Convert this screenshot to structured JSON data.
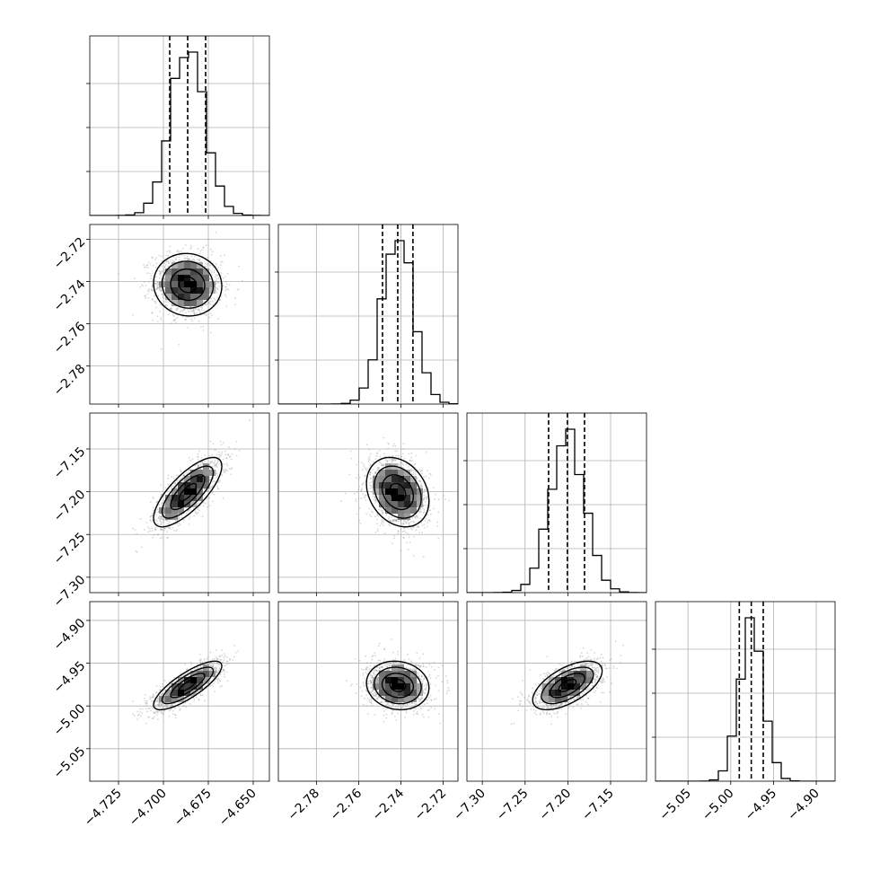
{
  "chart_data": {
    "type": "corner",
    "parameters": [
      {
        "ticks": [
          -4.725,
          -4.7,
          -4.675,
          -4.65
        ],
        "tick_labels": [
          "−4.725",
          "−4.700",
          "−4.675",
          "−4.650"
        ],
        "range": [
          -4.741,
          -4.641
        ],
        "mean": -4.6865,
        "sd": 0.0095,
        "quantiles": [
          -4.6965,
          -4.6865,
          -4.6765
        ]
      },
      {
        "ticks": [
          -2.78,
          -2.76,
          -2.74,
          -2.72
        ],
        "tick_labels": [
          "−2.78",
          "−2.76",
          "−2.74",
          "−2.72"
        ],
        "range": [
          -2.798,
          -2.713
        ],
        "mean": -2.7415,
        "sd": 0.0074,
        "quantiles": [
          -2.7487,
          -2.7415,
          -2.7343
        ]
      },
      {
        "ticks": [
          -7.3,
          -7.25,
          -7.2,
          -7.15
        ],
        "tick_labels": [
          "−7.30",
          "−7.25",
          "−7.20",
          "−7.15"
        ],
        "range": [
          -7.318,
          -7.108
        ],
        "mean": -7.2005,
        "sd": 0.0203,
        "quantiles": [
          -7.2225,
          -7.2005,
          -7.1805
        ]
      },
      {
        "ticks": [
          -5.05,
          -5.0,
          -4.95,
          -4.9
        ],
        "tick_labels": [
          "−5.05",
          "−5.00",
          "−4.95",
          "−4.90"
        ],
        "range": [
          -5.088,
          -4.878
        ],
        "mean": -4.976,
        "sd": 0.0142,
        "quantiles": [
          -4.99,
          -4.976,
          -4.962
        ]
      }
    ],
    "correlations": [
      [
        1,
        -0.05,
        0.75,
        0.8
      ],
      [
        -0.05,
        1,
        -0.25,
        -0.1
      ],
      [
        0.75,
        -0.25,
        1,
        0.6
      ],
      [
        0.8,
        -0.1,
        0.6,
        1
      ]
    ],
    "quantile_levels": [
      0.16,
      0.5,
      0.84
    ],
    "grid": true,
    "colors": {
      "points": "#8c8c8c",
      "density": "#000000",
      "lines": "#000000"
    }
  }
}
